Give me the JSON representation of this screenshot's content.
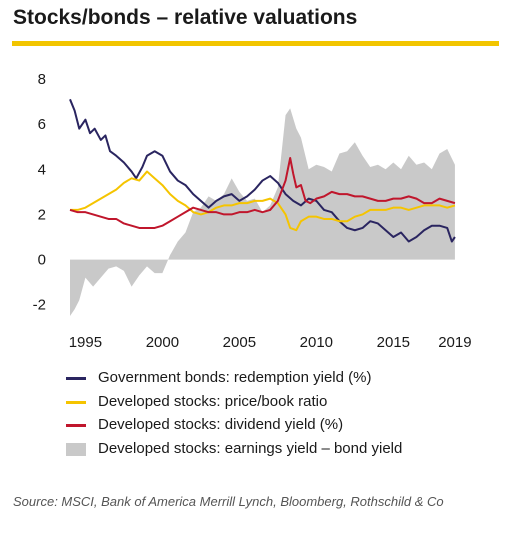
{
  "title": "Stocks/bonds – relative valuations",
  "colors": {
    "accent": "#f2c500",
    "bonds": "#2a2560",
    "price_book": "#f5c400",
    "dividend": "#c0162c",
    "earnings_gap": "#c9c9c9"
  },
  "legend": [
    {
      "label": "Government bonds: redemption yield (%)",
      "color": "#2a2560",
      "kind": "line"
    },
    {
      "label": "Developed stocks: price/book ratio",
      "color": "#f5c400",
      "kind": "line"
    },
    {
      "label": "Developed stocks: dividend yield (%)",
      "color": "#c0162c",
      "kind": "line"
    },
    {
      "label": "Developed stocks: earnings yield – bond yield",
      "color": "#c9c9c9",
      "kind": "area"
    }
  ],
  "source": "Source: MSCI, Bank of America Merrill Lynch, Bloomberg, Rothschild & Co",
  "chart_data": {
    "type": "line",
    "xlim": [
      1994.0,
      2019.2
    ],
    "ylim": [
      -2.5,
      8
    ],
    "x_ticks": [
      1995,
      2000,
      2005,
      2010,
      2015,
      2019
    ],
    "y_ticks": [
      -2,
      0,
      2,
      4,
      6,
      8
    ],
    "series": [
      {
        "name": "Government bonds: redemption yield (%)",
        "kind": "line",
        "color": "#2a2560",
        "x": [
          1994.0,
          1994.3,
          1994.6,
          1995.0,
          1995.3,
          1995.6,
          1996.0,
          1996.3,
          1996.6,
          1997.0,
          1997.5,
          1998.0,
          1998.3,
          1998.7,
          1999.0,
          1999.5,
          2000.0,
          2000.5,
          2001.0,
          2001.5,
          2002.0,
          2002.5,
          2003.0,
          2003.5,
          2004.0,
          2004.5,
          2005.0,
          2005.5,
          2006.0,
          2006.5,
          2007.0,
          2007.5,
          2008.0,
          2008.5,
          2009.0,
          2009.5,
          2010.0,
          2010.5,
          2011.0,
          2011.5,
          2012.0,
          2012.5,
          2013.0,
          2013.5,
          2014.0,
          2014.5,
          2015.0,
          2015.5,
          2016.0,
          2016.5,
          2017.0,
          2017.5,
          2018.0,
          2018.5,
          2018.8,
          2019.0
        ],
        "y": [
          7.1,
          6.6,
          5.8,
          6.2,
          5.6,
          5.8,
          5.3,
          5.5,
          4.8,
          4.6,
          4.3,
          3.9,
          3.6,
          4.1,
          4.6,
          4.8,
          4.6,
          3.9,
          3.5,
          3.3,
          2.9,
          2.6,
          2.3,
          2.6,
          2.8,
          2.9,
          2.6,
          2.8,
          3.1,
          3.5,
          3.7,
          3.4,
          2.9,
          2.6,
          2.4,
          2.7,
          2.6,
          2.2,
          2.1,
          1.7,
          1.4,
          1.3,
          1.4,
          1.7,
          1.6,
          1.3,
          1.0,
          1.2,
          0.8,
          1.0,
          1.3,
          1.5,
          1.5,
          1.4,
          0.8,
          1.0
        ]
      },
      {
        "name": "Developed stocks: price/book ratio",
        "kind": "line",
        "color": "#f5c400",
        "x": [
          1994.0,
          1994.5,
          1995.0,
          1995.5,
          1996.0,
          1996.5,
          1997.0,
          1997.5,
          1998.0,
          1998.5,
          1999.0,
          1999.5,
          2000.0,
          2000.5,
          2001.0,
          2001.5,
          2002.0,
          2002.5,
          2003.0,
          2003.5,
          2004.0,
          2004.5,
          2005.0,
          2005.5,
          2006.0,
          2006.5,
          2007.0,
          2007.5,
          2008.0,
          2008.3,
          2008.7,
          2009.0,
          2009.5,
          2010.0,
          2010.5,
          2011.0,
          2011.5,
          2012.0,
          2012.5,
          2013.0,
          2013.5,
          2014.0,
          2014.5,
          2015.0,
          2015.5,
          2016.0,
          2016.5,
          2017.0,
          2017.5,
          2018.0,
          2018.5,
          2019.0
        ],
        "y": [
          2.2,
          2.2,
          2.3,
          2.5,
          2.7,
          2.9,
          3.1,
          3.4,
          3.6,
          3.5,
          3.9,
          3.6,
          3.3,
          2.9,
          2.6,
          2.4,
          2.1,
          2.0,
          2.1,
          2.3,
          2.4,
          2.4,
          2.5,
          2.5,
          2.6,
          2.6,
          2.7,
          2.5,
          2.0,
          1.4,
          1.3,
          1.7,
          1.9,
          1.9,
          1.8,
          1.8,
          1.7,
          1.7,
          1.9,
          2.0,
          2.2,
          2.2,
          2.2,
          2.3,
          2.3,
          2.2,
          2.3,
          2.4,
          2.4,
          2.4,
          2.3,
          2.4
        ]
      },
      {
        "name": "Developed stocks: dividend yield (%)",
        "kind": "line",
        "color": "#c0162c",
        "x": [
          1994.0,
          1994.5,
          1995.0,
          1995.5,
          1996.0,
          1996.5,
          1997.0,
          1997.5,
          1998.0,
          1998.5,
          1999.0,
          1999.5,
          2000.0,
          2000.5,
          2001.0,
          2001.5,
          2002.0,
          2002.5,
          2003.0,
          2003.5,
          2004.0,
          2004.5,
          2005.0,
          2005.5,
          2006.0,
          2006.5,
          2007.0,
          2007.5,
          2008.0,
          2008.3,
          2008.5,
          2008.7,
          2009.0,
          2009.3,
          2009.6,
          2010.0,
          2010.5,
          2011.0,
          2011.5,
          2012.0,
          2012.5,
          2013.0,
          2013.5,
          2014.0,
          2014.5,
          2015.0,
          2015.5,
          2016.0,
          2016.5,
          2017.0,
          2017.5,
          2018.0,
          2018.5,
          2019.0
        ],
        "y": [
          2.2,
          2.1,
          2.1,
          2.0,
          1.9,
          1.8,
          1.8,
          1.6,
          1.5,
          1.4,
          1.4,
          1.4,
          1.5,
          1.7,
          1.9,
          2.1,
          2.3,
          2.2,
          2.1,
          2.1,
          2.0,
          2.0,
          2.1,
          2.1,
          2.2,
          2.1,
          2.2,
          2.6,
          3.5,
          4.5,
          3.8,
          3.2,
          3.3,
          2.6,
          2.5,
          2.7,
          2.8,
          3.0,
          2.9,
          2.9,
          2.8,
          2.8,
          2.7,
          2.6,
          2.6,
          2.7,
          2.7,
          2.8,
          2.7,
          2.5,
          2.5,
          2.7,
          2.6,
          2.5
        ]
      },
      {
        "name": "Developed stocks: earnings yield – bond yield",
        "kind": "area",
        "color": "#c9c9c9",
        "x": [
          1994.0,
          1994.3,
          1994.6,
          1995.0,
          1995.5,
          1996.0,
          1996.5,
          1997.0,
          1997.5,
          1998.0,
          1998.5,
          1999.0,
          1999.5,
          2000.0,
          2000.5,
          2001.0,
          2001.5,
          2002.0,
          2002.5,
          2003.0,
          2003.5,
          2004.0,
          2004.5,
          2005.0,
          2005.5,
          2006.0,
          2006.5,
          2007.0,
          2007.5,
          2008.0,
          2008.3,
          2008.7,
          2009.0,
          2009.5,
          2010.0,
          2010.5,
          2011.0,
          2011.5,
          2012.0,
          2012.5,
          2013.0,
          2013.5,
          2014.0,
          2014.5,
          2015.0,
          2015.5,
          2016.0,
          2016.5,
          2017.0,
          2017.5,
          2018.0,
          2018.5,
          2019.0
        ],
        "y": [
          -2.5,
          -2.2,
          -1.8,
          -0.8,
          -1.2,
          -0.8,
          -0.4,
          -0.3,
          -0.5,
          -1.2,
          -0.7,
          -0.3,
          -0.6,
          -0.6,
          0.2,
          0.8,
          1.2,
          2.1,
          2.3,
          2.8,
          2.6,
          2.9,
          3.6,
          3.0,
          2.6,
          2.7,
          2.1,
          2.4,
          3.2,
          6.4,
          6.7,
          5.8,
          5.4,
          4.0,
          4.2,
          4.1,
          3.9,
          4.7,
          4.8,
          5.2,
          4.6,
          4.1,
          4.2,
          4.0,
          4.3,
          4.0,
          4.6,
          4.2,
          4.3,
          4.0,
          4.7,
          4.9,
          4.2
        ]
      }
    ]
  }
}
